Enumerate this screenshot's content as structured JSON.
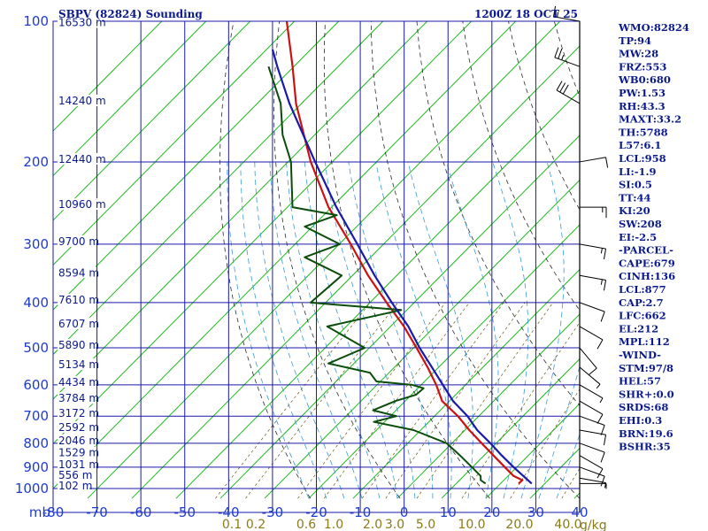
{
  "header": {
    "station": "SBPV (82824) Sounding",
    "time": "1200Z 18 OCT 25"
  },
  "axis": {
    "pressure_unit": "mb",
    "mixing_unit": "g/kg"
  },
  "indices": [
    "WMO:82824",
    "TP:94",
    "MW:28",
    "FRZ:553",
    "WB0:680",
    "PW:1.53",
    "RH:43.3",
    "MAXT:33.2",
    "TH:5788",
    "L57:6.1",
    "LCL:958",
    "LI:-1.9",
    "SI:0.5",
    "TT:44",
    "KI:20",
    "SW:208",
    "EI:-2.5",
    "-PARCEL-",
    "CAPE:679",
    "CINH:136",
    "LCL:877",
    "CAP:2.7",
    "LFC:662",
    "EL:212",
    "MPL:112",
    "-WIND-",
    "STM:97/8",
    "HEL:57",
    "SHR+:0.0",
    "SRDS:68",
    "EHI:0.3",
    "BRN:19.6",
    "BSHR:35"
  ],
  "colors": {
    "grid": "#1a1aa8",
    "isotherm": "#1fb81f",
    "dry_adiabat": "#2a2a2a",
    "moist_adiabat": "#3a9ad9",
    "temperature": "#cc1111",
    "dewpoint": "#0b4d0b",
    "parcel": "#1a1aa8"
  },
  "chart_data": {
    "type": "line",
    "chart_kind": "skew-T log-P sounding",
    "y_axis": {
      "scale": "log",
      "range": [
        1000,
        100
      ],
      "pressure_ticks": [
        100,
        200,
        300,
        400,
        500,
        600,
        700,
        800,
        900,
        1000
      ],
      "pressure_labels": [
        "100",
        "200",
        "300",
        "400",
        "500",
        "600",
        "700",
        "800",
        "900",
        "1000"
      ],
      "heights": [
        {
          "p": 102,
          "label": "16530 m"
        },
        {
          "p": 150,
          "label": "14240 m"
        },
        {
          "p": 200,
          "label": "12440 m"
        },
        {
          "p": 250,
          "label": "10960 m"
        },
        {
          "p": 300,
          "label": "9700 m"
        },
        {
          "p": 350,
          "label": "8594 m"
        },
        {
          "p": 400,
          "label": "7610 m"
        },
        {
          "p": 450,
          "label": "6707 m"
        },
        {
          "p": 500,
          "label": "5890 m"
        },
        {
          "p": 550,
          "label": "5134 m"
        },
        {
          "p": 600,
          "label": "4434 m"
        },
        {
          "p": 650,
          "label": "3784 m"
        },
        {
          "p": 700,
          "label": "3172 m"
        },
        {
          "p": 750,
          "label": "2592 m"
        },
        {
          "p": 800,
          "label": "2046 m"
        },
        {
          "p": 850,
          "label": "1529 m"
        },
        {
          "p": 900,
          "label": "1031 m"
        },
        {
          "p": 950,
          "label": "556 m"
        },
        {
          "p": 1000,
          "label": "102 m"
        }
      ]
    },
    "x_axis": {
      "range": [
        -80,
        40
      ],
      "temperature_ticks": [
        -80,
        -70,
        -60,
        -50,
        -40,
        -30,
        -20,
        -10,
        0,
        10,
        20,
        30,
        40
      ],
      "temperature_labels": [
        "-80",
        "-70",
        "-60",
        "-50",
        "-40",
        "-30",
        "-20",
        "-10",
        "0",
        "10",
        "20",
        "30",
        "40"
      ]
    },
    "mixing_ratio_lines": [
      {
        "w": 0.1,
        "label": "0.1"
      },
      {
        "w": 0.2,
        "label": "0.2"
      },
      {
        "w": 0.6,
        "label": "0.6"
      },
      {
        "w": 1.0,
        "label": "1.0"
      },
      {
        "w": 2.0,
        "label": "2.0"
      },
      {
        "w": 3.0,
        "label": "3.0"
      },
      {
        "w": 5.0,
        "label": "5.0"
      },
      {
        "w": 10.0,
        "label": "10.0"
      },
      {
        "w": 20.0,
        "label": "20.0"
      },
      {
        "w": 40.0,
        "label": "40.0"
      }
    ],
    "series": [
      {
        "key": "temperature",
        "points": [
          [
            976,
            25.5
          ],
          [
            960,
            26.0
          ],
          [
            940,
            23.5
          ],
          [
            900,
            20.5
          ],
          [
            850,
            16.6
          ],
          [
            800,
            12.5
          ],
          [
            750,
            8.2
          ],
          [
            700,
            4.0
          ],
          [
            650,
            -1.3
          ],
          [
            600,
            -4.5
          ],
          [
            550,
            -8.5
          ],
          [
            500,
            -13.2
          ],
          [
            450,
            -18.5
          ],
          [
            400,
            -25.2
          ],
          [
            350,
            -32.5
          ],
          [
            300,
            -40.0
          ],
          [
            250,
            -49.3
          ],
          [
            200,
            -58.5
          ],
          [
            150,
            -68.5
          ],
          [
            125,
            -73.5
          ],
          [
            100,
            -80.0
          ]
        ]
      },
      {
        "key": "dewpoint",
        "points": [
          [
            976,
            18.0
          ],
          [
            960,
            16.5
          ],
          [
            940,
            16.0
          ],
          [
            900,
            13.0
          ],
          [
            850,
            9.0
          ],
          [
            800,
            4.5
          ],
          [
            750,
            -4.5
          ],
          [
            720,
            -14.5
          ],
          [
            700,
            -10.0
          ],
          [
            680,
            -16.0
          ],
          [
            650,
            -12.0
          ],
          [
            630,
            -8.0
          ],
          [
            610,
            -7.0
          ],
          [
            600,
            -10.0
          ],
          [
            590,
            -18.5
          ],
          [
            565,
            -21.0
          ],
          [
            540,
            -31.5
          ],
          [
            500,
            -25.0
          ],
          [
            450,
            -36.0
          ],
          [
            415,
            -21.0
          ],
          [
            400,
            -42.5
          ],
          [
            350,
            -38.5
          ],
          [
            320,
            -49.0
          ],
          [
            300,
            -42.5
          ],
          [
            275,
            -52.5
          ],
          [
            260,
            -46.5
          ],
          [
            250,
            -57.5
          ],
          [
            240,
            -58.5
          ],
          [
            200,
            -63.0
          ],
          [
            175,
            -68.0
          ],
          [
            150,
            -72.0
          ],
          [
            125,
            -79.0
          ]
        ]
      },
      {
        "key": "parcel",
        "points": [
          [
            976,
            28.5
          ],
          [
            900,
            22.5
          ],
          [
            850,
            18.5
          ],
          [
            800,
            14.5
          ],
          [
            750,
            10.0
          ],
          [
            700,
            6.2
          ],
          [
            650,
            1.2
          ],
          [
            600,
            -3.0
          ],
          [
            550,
            -7.5
          ],
          [
            500,
            -12.5
          ],
          [
            450,
            -17.5
          ],
          [
            400,
            -24.0
          ],
          [
            350,
            -31.0
          ],
          [
            300,
            -38.5
          ],
          [
            250,
            -47.5
          ],
          [
            200,
            -57.5
          ],
          [
            150,
            -70.0
          ],
          [
            125,
            -77.0
          ],
          [
            115,
            -80.0
          ]
        ]
      }
    ],
    "winds": [
      {
        "p": 976,
        "dir": 90,
        "spd": 5
      },
      {
        "p": 950,
        "dir": 100,
        "spd": 5
      },
      {
        "p": 900,
        "dir": 110,
        "spd": 10
      },
      {
        "p": 850,
        "dir": 120,
        "spd": 10
      },
      {
        "p": 800,
        "dir": 110,
        "spd": 10
      },
      {
        "p": 750,
        "dir": 100,
        "spd": 10
      },
      {
        "p": 700,
        "dir": 110,
        "spd": 10
      },
      {
        "p": 650,
        "dir": 120,
        "spd": 10
      },
      {
        "p": 600,
        "dir": 120,
        "spd": 5
      },
      {
        "p": 550,
        "dir": 130,
        "spd": 5
      },
      {
        "p": 500,
        "dir": 140,
        "spd": 10
      },
      {
        "p": 450,
        "dir": 120,
        "spd": 10
      },
      {
        "p": 400,
        "dir": 110,
        "spd": 10
      },
      {
        "p": 350,
        "dir": 100,
        "spd": 15
      },
      {
        "p": 300,
        "dir": 100,
        "spd": 15
      },
      {
        "p": 250,
        "dir": 90,
        "spd": 15
      },
      {
        "p": 200,
        "dir": 80,
        "spd": 10
      },
      {
        "p": 150,
        "dir": 300,
        "spd": 30
      },
      {
        "p": 125,
        "dir": 290,
        "spd": 25
      },
      {
        "p": 100,
        "dir": 280,
        "spd": 15
      }
    ]
  }
}
